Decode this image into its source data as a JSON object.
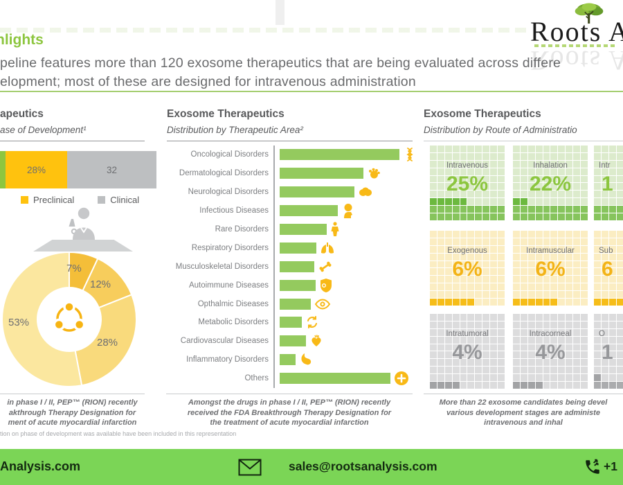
{
  "header": {
    "highlight": "hlights",
    "line1": "peline features more than 120 exosome therapeutics that are being evaluated across differe",
    "line2": "elopment; most of these are designed for intravenous administration"
  },
  "logo": {
    "wordmark": "Roots A"
  },
  "colors": {
    "accent_green": "#8DC63F",
    "footer_green": "#7BD556",
    "bar_green": "#94CA5E",
    "icon_yellow": "#F8B917",
    "preclinical_yellow": "#FFC20E",
    "clinical_gray": "#BDBFC1"
  },
  "phase": {
    "title": "apeutics",
    "subtitle": "ase of Development¹",
    "stacked_bar": {
      "segments": [
        {
          "label": "",
          "width": 8,
          "color": "#8DC63F"
        },
        {
          "label": "28%",
          "width": 89,
          "color": "#FFC20E"
        },
        {
          "label": "32",
          "width": 129,
          "color": "#BDBFC1"
        }
      ]
    },
    "legend": [
      {
        "label": "Preclinical",
        "color": "#FFC20E"
      },
      {
        "label": "Clinical",
        "color": "#BDBFC1"
      }
    ],
    "donut": {
      "slices": [
        {
          "label": "7%",
          "value": 7,
          "color": "#F4BE39"
        },
        {
          "label": "12%",
          "value": 12,
          "color": "#F7CD5C"
        },
        {
          "label": "28%",
          "value": 28,
          "color": "#F9DA7C"
        },
        {
          "label": "53%",
          "value": 53,
          "color": "#FBE79F"
        }
      ]
    },
    "note_lines": [
      "in phase I / II, PEP™ (RION) recently",
      "akthrough Therapy Designation for",
      "ment of acute myocardial infarction"
    ]
  },
  "area": {
    "title": "Exosome Therapeutics",
    "subtitle": "Distribution by Therapeutic Area²",
    "rows": [
      {
        "label": "Oncological Disorders",
        "value": 173,
        "icon": "dna-icon"
      },
      {
        "label": "Dermatological Disorders",
        "value": 121,
        "icon": "hand-icon"
      },
      {
        "label": "Neurological Disorders",
        "value": 108,
        "icon": "brain-icon"
      },
      {
        "label": "Infectious Diseases",
        "value": 84,
        "icon": "head-icon"
      },
      {
        "label": "Rare Disorders",
        "value": 68,
        "icon": "person-icon"
      },
      {
        "label": "Respiratory Disorders",
        "value": 53,
        "icon": "lungs-icon"
      },
      {
        "label": "Musculoskeletal Disorders",
        "value": 50,
        "icon": "bone-icon"
      },
      {
        "label": "Autoimmune Diseases",
        "value": 52,
        "icon": "shield-icon"
      },
      {
        "label": "Opthalmic Diseases",
        "value": 45,
        "icon": "eye-icon"
      },
      {
        "label": "Metabolic Disorders",
        "value": 32,
        "icon": "cycle-icon"
      },
      {
        "label": "Cardiovascular Diseases",
        "value": 38,
        "icon": "heart-icon"
      },
      {
        "label": "Inflammatory Disorders",
        "value": 23,
        "icon": "stomach-icon"
      },
      {
        "label": "Others",
        "value": 160,
        "icon": "plus-icon"
      }
    ],
    "note_lines": [
      "Amongst the drugs in phase I / II, PEP™ (RION) recently",
      "received the FDA Breakthrough Therapy Designation for",
      "the treatment of acute myocardial infarction"
    ]
  },
  "route": {
    "title": "Exosome Therapeutics",
    "subtitle": "Distribution by Route of Administratio",
    "waffles": [
      {
        "label": "Intravenous",
        "pct": "25%",
        "filled": 25,
        "theme": "green",
        "clipped": false
      },
      {
        "label": "Inhalation",
        "pct": "22%",
        "filled": 22,
        "theme": "green",
        "clipped": false
      },
      {
        "label": "Intr",
        "pct": "1",
        "filled": 20,
        "theme": "green",
        "clipped": true
      },
      {
        "label": "Exogenous",
        "pct": "6%",
        "filled": 6,
        "theme": "yellow",
        "clipped": false
      },
      {
        "label": "Intramuscular",
        "pct": "6%",
        "filled": 6,
        "theme": "yellow",
        "clipped": false
      },
      {
        "label": "Sub",
        "pct": "6",
        "filled": 6,
        "theme": "yellow",
        "clipped": true
      },
      {
        "label": "Intratumoral",
        "pct": "4%",
        "filled": 4,
        "theme": "gray",
        "clipped": false
      },
      {
        "label": "Intracorneal",
        "pct": "4%",
        "filled": 4,
        "theme": "gray",
        "clipped": false
      },
      {
        "label": "O",
        "pct": "1",
        "filled": 11,
        "theme": "gray",
        "clipped": true
      }
    ],
    "note_lines": [
      "More than 22 exosome candidates being devel",
      "various development stages are administe",
      "intravenous and inhal"
    ]
  },
  "footnote_small": "tion on phase of development was available have been included in this representation",
  "footer": {
    "website": "Analysis.com",
    "email": "sales@rootsanalysis.com",
    "phone": "+1"
  },
  "chart_data": [
    {
      "type": "bar",
      "subtype": "horizontal_stacked",
      "title": "ase of Development¹",
      "categories": [
        "Preclinical",
        "Clinical"
      ],
      "values": [
        28,
        32
      ],
      "value_labels": [
        "28%",
        "32"
      ],
      "colors": [
        "#FFC20E",
        "#BDBFC1"
      ]
    },
    {
      "type": "pie",
      "subtype": "donut",
      "labels": [
        "7%",
        "12%",
        "28%",
        "53%"
      ],
      "values": [
        7,
        12,
        28,
        53
      ],
      "colors": [
        "#F4BE39",
        "#F7CD5C",
        "#F9DA7C",
        "#FBE79F"
      ]
    },
    {
      "type": "bar",
      "subtype": "horizontal",
      "title": "Distribution by Therapeutic Area²",
      "categories": [
        "Oncological Disorders",
        "Dermatological Disorders",
        "Neurological Disorders",
        "Infectious Diseases",
        "Rare Disorders",
        "Respiratory Disorders",
        "Musculoskeletal Disorders",
        "Autoimmune Diseases",
        "Opthalmic Diseases",
        "Metabolic Disorders",
        "Cardiovascular Diseases",
        "Inflammatory Disorders",
        "Others"
      ],
      "values": [
        100,
        70,
        62,
        49,
        39,
        31,
        29,
        30,
        26,
        18,
        22,
        13,
        92
      ],
      "value_units": "relative bar length, max = 100 (bars unlabeled)",
      "bar_color": "#94CA5E"
    },
    {
      "type": "heatmap",
      "subtype": "waffle_10x10",
      "title": "Distribution by Route of Administratio",
      "categories": [
        "Intravenous",
        "Inhalation",
        "Intr",
        "Exogenous",
        "Intramuscular",
        "Sub",
        "Intratumoral",
        "Intracorneal",
        "O"
      ],
      "values": [
        25,
        22,
        null,
        6,
        6,
        null,
        4,
        4,
        null
      ],
      "value_labels": [
        "25%",
        "22%",
        "1",
        "6%",
        "6%",
        "6",
        "4%",
        "4%",
        "1"
      ]
    }
  ]
}
